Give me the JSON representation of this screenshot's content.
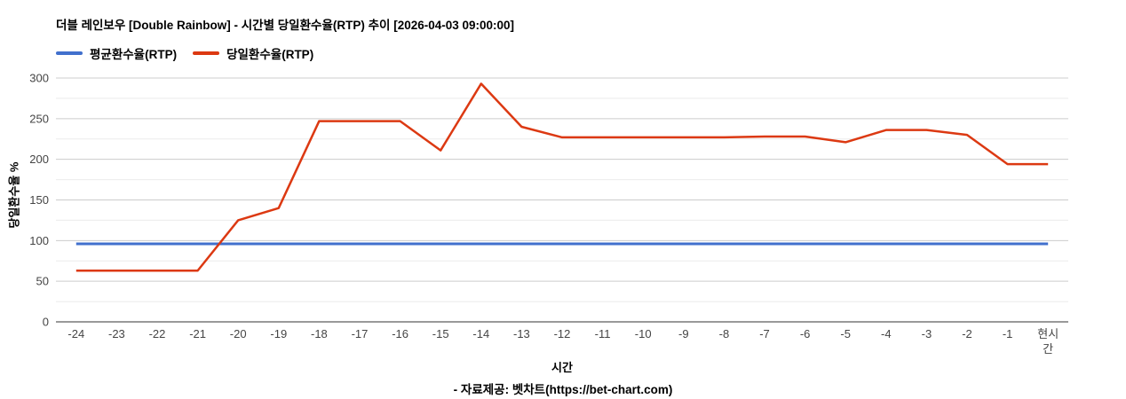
{
  "chart_data": {
    "type": "line",
    "title": "더블 레인보우 [Double Rainbow] - 시간별 당일환수율(RTP) 추이 [2026-04-03 09:00:00]",
    "xlabel": "시간",
    "ylabel": "당일환수율 %",
    "footer": "- 자료제공: 벳차트(https://bet-chart.com)",
    "ylim": [
      0,
      300
    ],
    "y_ticks": [
      0,
      50,
      100,
      150,
      200,
      250,
      300
    ],
    "y_minor_step": 25,
    "grid": "horizontal, minor every 25, major every 50",
    "legend_position": "top-left",
    "axis_label_color": "#444444",
    "major_grid_color": "#cccccc",
    "minor_grid_color": "#ebebeb",
    "baseline_color": "#333333",
    "categories": [
      "-24",
      "-23",
      "-22",
      "-21",
      "-20",
      "-19",
      "-18",
      "-17",
      "-16",
      "-15",
      "-14",
      "-13",
      "-12",
      "-11",
      "-10",
      "-9",
      "-8",
      "-7",
      "-6",
      "-5",
      "-4",
      "-3",
      "-2",
      "-1",
      "현시간"
    ],
    "series": [
      {
        "name": "평균환수율(RTP)",
        "color": "#4170cd",
        "values": [
          96,
          96,
          96,
          96,
          96,
          96,
          96,
          96,
          96,
          96,
          96,
          96,
          96,
          96,
          96,
          96,
          96,
          96,
          96,
          96,
          96,
          96,
          96,
          96,
          96
        ]
      },
      {
        "name": "당일환수율(RTP)",
        "color": "#dc3912",
        "values": [
          63,
          63,
          63,
          63,
          125,
          140,
          247,
          247,
          247,
          211,
          293,
          240,
          227,
          227,
          227,
          227,
          227,
          228,
          228,
          221,
          236,
          236,
          230,
          194,
          194
        ]
      }
    ]
  }
}
